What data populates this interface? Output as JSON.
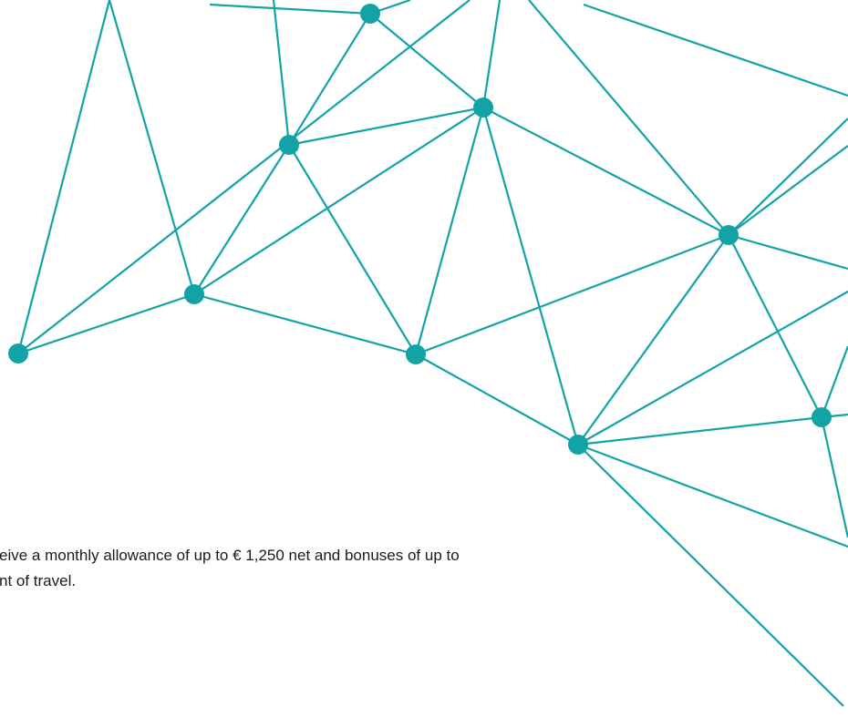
{
  "content": {
    "paragraph_lines": [
      "eive a monthly allowance of up to € 1,250 net and bonuses of up to",
      "nt of travel."
    ]
  }
}
